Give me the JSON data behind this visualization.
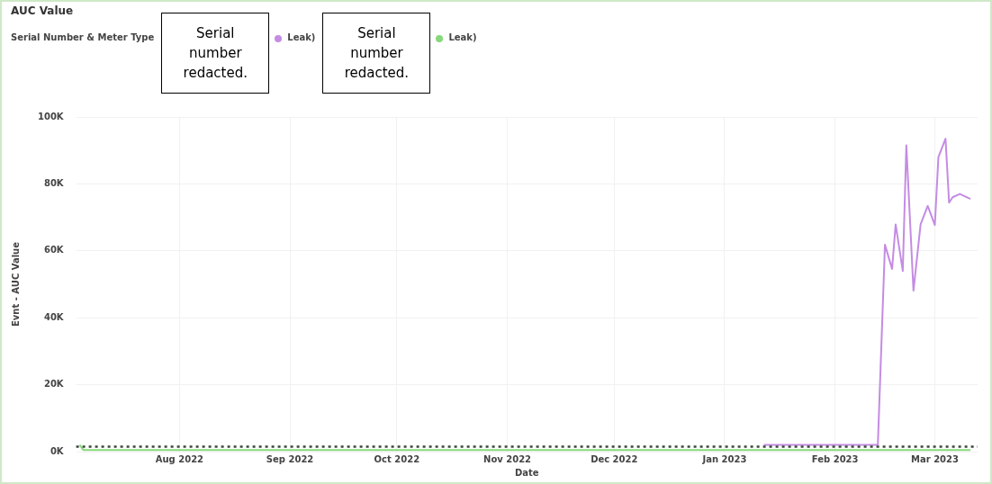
{
  "chart_data": {
    "type": "line",
    "title": "AUC Value",
    "legend_title": "Serial Number & Meter Type",
    "xlabel": "Date",
    "ylabel": "Evnt - AUC Value",
    "annotations": [
      "Serial number redacted.",
      "Serial number redacted."
    ],
    "series": [
      {
        "name": "Leak)",
        "color": "#c48ce3",
        "x": [
          "2023-01-12",
          "2023-01-20",
          "2023-02-13",
          "2023-02-15",
          "2023-02-17",
          "2023-02-18",
          "2023-02-20",
          "2023-02-21",
          "2023-02-23",
          "2023-02-25",
          "2023-02-27",
          "2023-03-01",
          "2023-03-02",
          "2023-03-04",
          "2023-03-05",
          "2023-03-06",
          "2023-03-08",
          "2023-03-11"
        ],
        "values": [
          2000,
          2000,
          2000,
          61800,
          54600,
          67900,
          54000,
          91500,
          48100,
          67900,
          73400,
          67700,
          88000,
          93500,
          74400,
          76000,
          77000,
          75500
        ]
      },
      {
        "name": "Leak)",
        "color": "#86d97a",
        "x": [
          "2022-07-04",
          "2022-07-05",
          "2022-10-01",
          "2023-01-01",
          "2023-03-11"
        ],
        "values": [
          2000,
          500,
          500,
          500,
          500
        ]
      }
    ],
    "ref_lines": [
      {
        "axis": "y",
        "value": 1500,
        "color": "#3a473a",
        "line_style": "dotted"
      }
    ],
    "xlim": [
      "2022-07-03",
      "2023-03-13"
    ],
    "xticks": [
      {
        "value": "2022-08-01",
        "label": "Aug 2022"
      },
      {
        "value": "2022-09-01",
        "label": "Sep 2022"
      },
      {
        "value": "2022-10-01",
        "label": "Oct 2022"
      },
      {
        "value": "2022-11-01",
        "label": "Nov 2022"
      },
      {
        "value": "2022-12-01",
        "label": "Dec 2022"
      },
      {
        "value": "2023-01-01",
        "label": "Jan 2023"
      },
      {
        "value": "2023-02-01",
        "label": "Feb 2023"
      },
      {
        "value": "2023-03-01",
        "label": "Mar 2023"
      }
    ],
    "ylim": [
      0,
      100000
    ],
    "yticks": [
      {
        "value": 0,
        "label": "0K"
      },
      {
        "value": 20000,
        "label": "20K"
      },
      {
        "value": 40000,
        "label": "40K"
      },
      {
        "value": 60000,
        "label": "60K"
      },
      {
        "value": 80000,
        "label": "80K"
      },
      {
        "value": 100000,
        "label": "100K"
      }
    ],
    "grid": true,
    "legend": "top left",
    "marker": "none",
    "line_style": "solid"
  }
}
